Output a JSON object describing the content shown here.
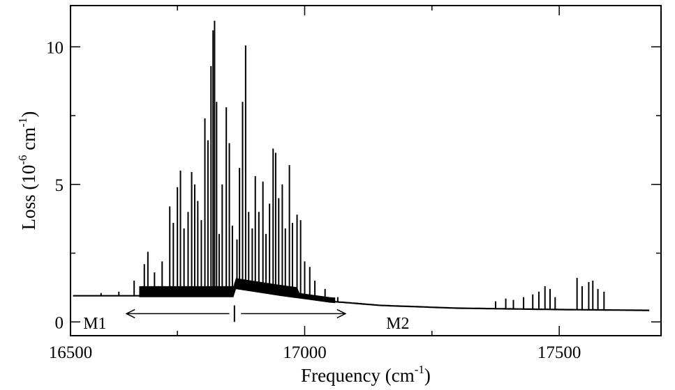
{
  "chart_data": {
    "type": "line",
    "xlabel": {
      "main": "Frequency (cm",
      "sup": "-1",
      "end": ")"
    },
    "ylabel": {
      "main": "Loss (10",
      "sup1": "-6",
      "mid": " cm",
      "sup2": "-1",
      "end": ")"
    },
    "xlim": [
      16540,
      17700
    ],
    "ylim": [
      -0.5,
      11.5
    ],
    "xticks": [
      16500,
      17000,
      17500
    ],
    "yticks": [
      0,
      5,
      10
    ],
    "grid": false,
    "legend": "none",
    "line_color": "#000000",
    "baseline": [
      [
        16545,
        0.95
      ],
      [
        16650,
        0.95
      ],
      [
        16860,
        0.95
      ],
      [
        16862,
        1.25
      ],
      [
        16950,
        1.0
      ],
      [
        17050,
        0.75
      ],
      [
        17150,
        0.6
      ],
      [
        17300,
        0.5
      ],
      [
        17500,
        0.45
      ],
      [
        17680,
        0.42
      ]
    ],
    "peaks": [
      [
        16600,
        1.05
      ],
      [
        16635,
        1.1
      ],
      [
        16665,
        1.5
      ],
      [
        16685,
        2.1
      ],
      [
        16692,
        2.55
      ],
      [
        16705,
        1.8
      ],
      [
        16720,
        2.2
      ],
      [
        16735,
        4.2
      ],
      [
        16742,
        3.6
      ],
      [
        16750,
        4.9
      ],
      [
        16756,
        5.5
      ],
      [
        16763,
        3.4
      ],
      [
        16771,
        4.0
      ],
      [
        16778,
        5.45
      ],
      [
        16784,
        5.0
      ],
      [
        16790,
        4.4
      ],
      [
        16797,
        3.7
      ],
      [
        16804,
        7.4
      ],
      [
        16810,
        6.6
      ],
      [
        16816,
        9.3
      ],
      [
        16820,
        10.6
      ],
      [
        16823,
        10.95
      ],
      [
        16827,
        8.0
      ],
      [
        16832,
        3.2
      ],
      [
        16838,
        5.0
      ],
      [
        16846,
        7.8
      ],
      [
        16852,
        6.5
      ],
      [
        16858,
        3.5
      ],
      [
        16867,
        3.0
      ],
      [
        16872,
        5.6
      ],
      [
        16878,
        8.0
      ],
      [
        16884,
        10.05
      ],
      [
        16890,
        4.0
      ],
      [
        16897,
        3.4
      ],
      [
        16903,
        5.3
      ],
      [
        16910,
        4.0
      ],
      [
        16918,
        5.1
      ],
      [
        16924,
        3.2
      ],
      [
        16931,
        4.3
      ],
      [
        16938,
        6.3
      ],
      [
        16943,
        6.15
      ],
      [
        16949,
        4.5
      ],
      [
        16956,
        5.0
      ],
      [
        16962,
        3.4
      ],
      [
        16970,
        5.7
      ],
      [
        16976,
        3.6
      ],
      [
        16985,
        3.9
      ],
      [
        16992,
        3.7
      ],
      [
        17000,
        2.2
      ],
      [
        17010,
        2.0
      ],
      [
        17020,
        1.5
      ],
      [
        17040,
        1.2
      ],
      [
        17065,
        0.9
      ],
      [
        17375,
        0.75
      ],
      [
        17395,
        0.85
      ],
      [
        17410,
        0.8
      ],
      [
        17430,
        0.9
      ],
      [
        17448,
        1.0
      ],
      [
        17460,
        1.1
      ],
      [
        17472,
        1.3
      ],
      [
        17482,
        1.2
      ],
      [
        17492,
        0.9
      ],
      [
        17535,
        1.6
      ],
      [
        17545,
        1.3
      ],
      [
        17558,
        1.45
      ],
      [
        17566,
        1.5
      ],
      [
        17576,
        1.2
      ],
      [
        17588,
        1.1
      ]
    ],
    "annotations": [
      {
        "text": "M1",
        "x": 16565,
        "y": -0.05
      },
      {
        "text": "M2",
        "x": 17160,
        "y": -0.05
      }
    ],
    "arrows": [
      {
        "from": 16852,
        "to": 16650,
        "y": 0.3
      },
      {
        "from": 16875,
        "to": 17080,
        "y": 0.3
      }
    ],
    "divider": {
      "x": 16862,
      "y_range": [
        0.0,
        0.6
      ]
    }
  }
}
